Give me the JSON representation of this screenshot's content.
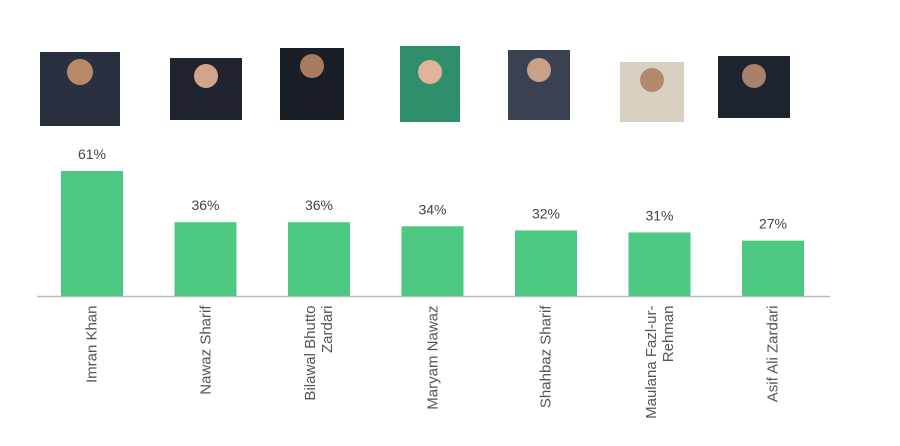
{
  "chart_data": {
    "type": "bar",
    "categories": [
      "Imran Khan",
      "Nawaz Sharif",
      "Bilawal Bhutto Zardari",
      "Maryam Nawaz",
      "Shahbaz Sharif",
      "Maulana Fazl-ur-Rehman",
      "Asif Ali Zardari"
    ],
    "values": [
      61,
      36,
      36,
      34,
      32,
      31,
      27
    ],
    "value_labels": [
      "61%",
      "36%",
      "36%",
      "34%",
      "32%",
      "31%",
      "27%"
    ],
    "color": "#4cc883"
  }
}
